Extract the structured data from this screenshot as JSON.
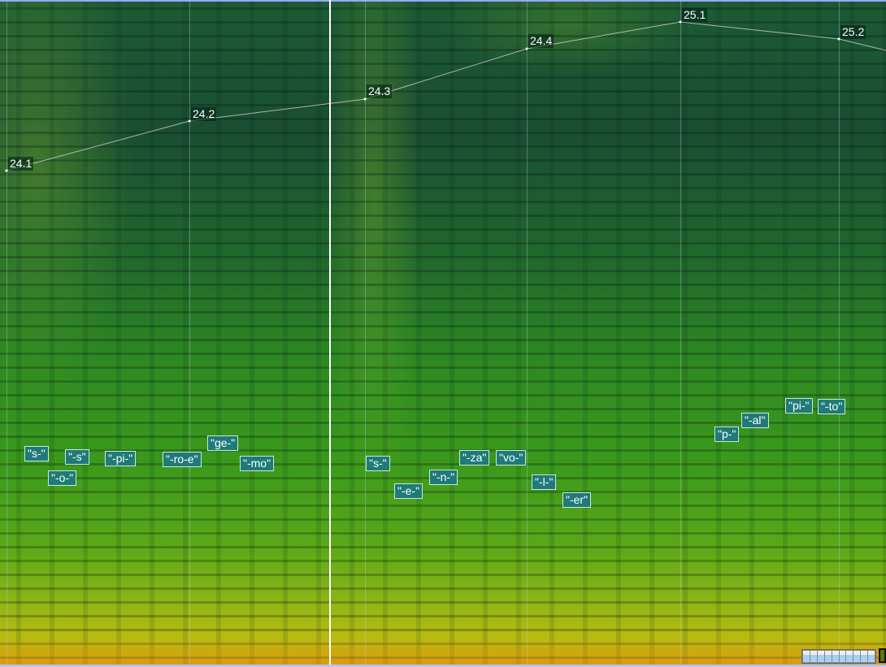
{
  "view": {
    "type": "spectrogram",
    "colors": {
      "low": "#1a4e33",
      "mid": "#3b9a1c",
      "high": "#d4a010",
      "label_bg": "#1f7a78",
      "playhead": "#ffffff"
    }
  },
  "time_instants": [
    "24.1",
    "24.2",
    "24.3",
    "24.4",
    "25.1",
    "25.2"
  ],
  "syllable_labels": [
    "\"s-\"",
    "\"-s\"",
    "\"-o-\"",
    "\"-pi-\"",
    "\"-ro-e\"",
    "\"ge-\"",
    "\"-mo\"",
    "\"s-\"",
    "\"-e-\"",
    "\"-n-\"",
    "\"-za\"",
    "\"vo-\"",
    "\"-l-\"",
    "\"-er\"",
    "\"p-\"",
    "\"-al\"",
    "\"pi-\"",
    "\"-to\""
  ]
}
